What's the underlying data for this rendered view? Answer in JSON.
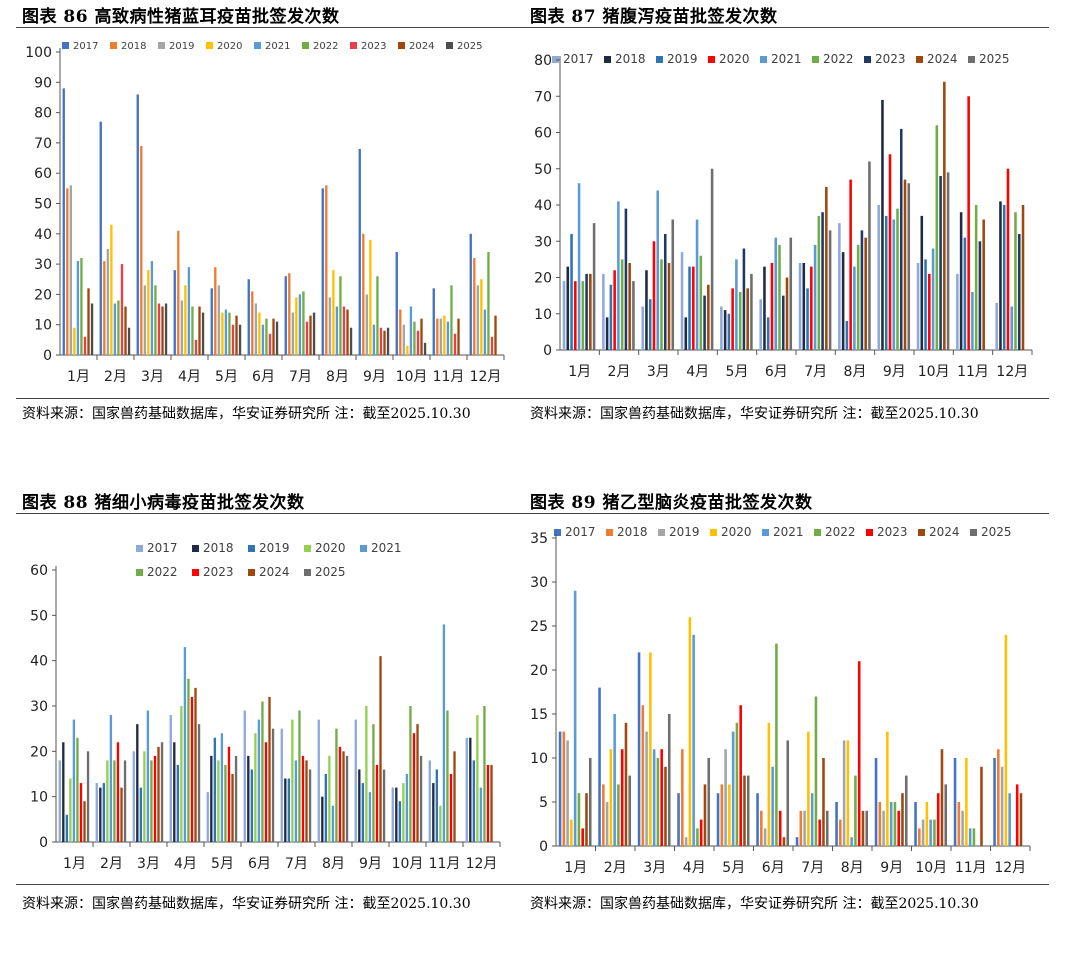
{
  "months": [
    "1月",
    "2月",
    "3月",
    "4月",
    "5月",
    "6月",
    "7月",
    "8月",
    "9月",
    "10月",
    "11月",
    "12月"
  ],
  "chart_data": [
    {
      "id": "c86",
      "type": "bar",
      "title": "图表 86 高致病性猪蓝耳疫苗批签发次数",
      "source": "资料来源：国家兽药基础数据库，华安证券研究所 注：截至2025.10.30",
      "ylim": [
        0,
        100
      ],
      "yticks": [
        0,
        10,
        20,
        30,
        40,
        50,
        60,
        70,
        80,
        90,
        100
      ],
      "legend_rows": [
        [
          "2017",
          "2018",
          "2019",
          "2020",
          "2021",
          "2022",
          "2023",
          "2024",
          "2025"
        ]
      ],
      "series": [
        {
          "name": "2017",
          "color": "#4472C4",
          "values": [
            88,
            77,
            86,
            28,
            22,
            25,
            26,
            55,
            68,
            34,
            22,
            40
          ]
        },
        {
          "name": "2018",
          "color": "#ED7D31",
          "values": [
            55,
            31,
            69,
            41,
            29,
            21,
            27,
            56,
            40,
            15,
            12,
            32
          ]
        },
        {
          "name": "2019",
          "color": "#A5A5A5",
          "values": [
            56,
            35,
            23,
            18,
            23,
            17,
            14,
            19,
            20,
            10,
            12,
            23
          ]
        },
        {
          "name": "2020",
          "color": "#FFC000",
          "values": [
            9,
            43,
            28,
            23,
            14,
            14,
            19,
            28,
            38,
            3,
            13,
            25
          ]
        },
        {
          "name": "2021",
          "color": "#5B9BD5",
          "values": [
            31,
            17,
            31,
            29,
            15,
            10,
            20,
            16,
            10,
            16,
            11,
            15
          ]
        },
        {
          "name": "2022",
          "color": "#70AD47",
          "values": [
            32,
            18,
            23,
            16,
            14,
            12,
            21,
            26,
            26,
            11,
            23,
            34
          ]
        },
        {
          "name": "2023",
          "color": "#E8404A",
          "values": [
            6,
            30,
            17,
            5,
            10,
            7,
            11,
            16,
            9,
            8,
            7,
            6
          ]
        },
        {
          "name": "2024",
          "color": "#9E480E",
          "values": [
            22,
            16,
            16,
            16,
            13,
            12,
            13,
            15,
            8,
            12,
            12,
            13
          ]
        },
        {
          "name": "2025",
          "color": "#4D4D4D",
          "values": [
            17,
            9,
            17,
            14,
            10,
            11,
            14,
            9,
            9,
            4,
            0,
            0
          ]
        }
      ]
    },
    {
      "id": "c87",
      "type": "bar",
      "title": "图表 87 猪腹泻疫苗批签发次数",
      "source": "资料来源：国家兽药基础数据库，华安证券研究所 注：截至2025.10.30",
      "ylim": [
        0,
        80
      ],
      "yticks": [
        0,
        10,
        20,
        30,
        40,
        50,
        60,
        70,
        80
      ],
      "legend_rows": [
        [
          "2017",
          "2018",
          "2019",
          "2020",
          "2021",
          "2022",
          "2023",
          "2024",
          "2025"
        ]
      ],
      "series": [
        {
          "name": "2017",
          "color": "#8EA9DB",
          "values": [
            19,
            21,
            12,
            27,
            12,
            14,
            24,
            35,
            40,
            24,
            21,
            13
          ]
        },
        {
          "name": "2018",
          "color": "#1F2A44",
          "values": [
            23,
            9,
            22,
            9,
            11,
            23,
            24,
            27,
            69,
            37,
            38,
            41
          ]
        },
        {
          "name": "2019",
          "color": "#2E75B6",
          "values": [
            32,
            18,
            14,
            23,
            10,
            9,
            17,
            8,
            37,
            25,
            31,
            40
          ]
        },
        {
          "name": "2020",
          "color": "#FF0000",
          "values": [
            19,
            22,
            30,
            23,
            17,
            24,
            23,
            47,
            54,
            21,
            70,
            50
          ]
        },
        {
          "name": "2021",
          "color": "#5B9BD5",
          "values": [
            46,
            41,
            44,
            36,
            25,
            31,
            29,
            23,
            36,
            28,
            16,
            12
          ]
        },
        {
          "name": "2022",
          "color": "#70AD47",
          "values": [
            19,
            25,
            25,
            26,
            16,
            29,
            37,
            29,
            39,
            62,
            40,
            38
          ]
        },
        {
          "name": "2023",
          "color": "#203864",
          "values": [
            21,
            39,
            32,
            15,
            28,
            15,
            38,
            33,
            61,
            48,
            30,
            32
          ]
        },
        {
          "name": "2024",
          "color": "#9E480E",
          "values": [
            21,
            24,
            24,
            18,
            17,
            20,
            45,
            31,
            47,
            74,
            36,
            40
          ]
        },
        {
          "name": "2025",
          "color": "#6E6E6E",
          "values": [
            35,
            19,
            36,
            50,
            21,
            31,
            33,
            52,
            46,
            49,
            0,
            0
          ]
        }
      ]
    },
    {
      "id": "c88",
      "type": "bar",
      "title": "图表 88 猪细小病毒疫苗批签发次数",
      "source": "资料来源：国家兽药基础数据库，华安证券研究所 注：截至2025.10.30",
      "ylim": [
        0,
        60
      ],
      "yticks": [
        0,
        10,
        20,
        30,
        40,
        50,
        60
      ],
      "legend_rows": [
        [
          "2017",
          "2018",
          "2019",
          "2020",
          "2021"
        ],
        [
          "2022",
          "2023",
          "2024",
          "2025"
        ]
      ],
      "series": [
        {
          "name": "2017",
          "color": "#8EA9DB",
          "values": [
            18,
            13,
            20,
            28,
            11,
            29,
            25,
            27,
            27,
            12,
            18,
            23
          ]
        },
        {
          "name": "2018",
          "color": "#1F2A44",
          "values": [
            22,
            12,
            26,
            22,
            19,
            19,
            14,
            10,
            16,
            12,
            13,
            23
          ]
        },
        {
          "name": "2019",
          "color": "#2E75B6",
          "values": [
            6,
            13,
            12,
            17,
            23,
            16,
            14,
            15,
            13,
            9,
            16,
            18
          ]
        },
        {
          "name": "2020",
          "color": "#92D050",
          "values": [
            14,
            18,
            20,
            30,
            18,
            24,
            27,
            19,
            30,
            13,
            8,
            28
          ]
        },
        {
          "name": "2021",
          "color": "#5B9BD5",
          "values": [
            27,
            28,
            29,
            43,
            24,
            27,
            18,
            8,
            11,
            15,
            48,
            12
          ]
        },
        {
          "name": "2022",
          "color": "#70AD47",
          "values": [
            23,
            18,
            18,
            36,
            17,
            31,
            29,
            25,
            26,
            30,
            29,
            30
          ]
        },
        {
          "name": "2023",
          "color": "#FF0000",
          "values": [
            13,
            22,
            19,
            32,
            21,
            22,
            19,
            21,
            17,
            24,
            15,
            17
          ]
        },
        {
          "name": "2024",
          "color": "#9E480E",
          "values": [
            9,
            12,
            21,
            34,
            15,
            32,
            18,
            20,
            41,
            26,
            20,
            17
          ]
        },
        {
          "name": "2025",
          "color": "#6E6E6E",
          "values": [
            20,
            18,
            22,
            26,
            19,
            25,
            16,
            19,
            16,
            19,
            0,
            0
          ]
        }
      ]
    },
    {
      "id": "c89",
      "type": "bar",
      "title": "图表 89 猪乙型脑炎疫苗批签发次数",
      "source": "资料来源：国家兽药基础数据库，华安证券研究所 注：截至2025.10.30",
      "ylim": [
        0,
        35
      ],
      "yticks": [
        0,
        5,
        10,
        15,
        20,
        25,
        30,
        35
      ],
      "legend_rows": [
        [
          "2017",
          "2018",
          "2019",
          "2020",
          "2021",
          "2022",
          "2023",
          "2024",
          "2025"
        ]
      ],
      "series": [
        {
          "name": "2017",
          "color": "#4472C4",
          "values": [
            13,
            18,
            22,
            6,
            6,
            6,
            1,
            5,
            10,
            5,
            10,
            10
          ]
        },
        {
          "name": "2018",
          "color": "#ED7D31",
          "values": [
            13,
            7,
            16,
            11,
            7,
            4,
            4,
            3,
            5,
            2,
            5,
            11
          ]
        },
        {
          "name": "2019",
          "color": "#A5A5A5",
          "values": [
            12,
            5,
            13,
            1,
            11,
            2,
            4,
            12,
            4,
            3,
            4,
            9
          ]
        },
        {
          "name": "2020",
          "color": "#FFC000",
          "values": [
            3,
            11,
            22,
            26,
            7,
            14,
            13,
            12,
            13,
            5,
            10,
            24
          ]
        },
        {
          "name": "2021",
          "color": "#5B9BD5",
          "values": [
            29,
            15,
            11,
            24,
            13,
            9,
            6,
            1,
            5,
            3,
            2,
            6
          ]
        },
        {
          "name": "2022",
          "color": "#70AD47",
          "values": [
            6,
            7,
            10,
            2,
            14,
            23,
            17,
            8,
            5,
            3,
            2,
            0
          ]
        },
        {
          "name": "2023",
          "color": "#FF0000",
          "values": [
            2,
            11,
            11,
            3,
            16,
            4,
            3,
            21,
            4,
            6,
            0,
            7
          ]
        },
        {
          "name": "2024",
          "color": "#9E480E",
          "values": [
            6,
            14,
            9,
            7,
            8,
            1,
            10,
            4,
            6,
            11,
            9,
            6
          ]
        },
        {
          "name": "2025",
          "color": "#6E6E6E",
          "values": [
            10,
            8,
            15,
            10,
            8,
            12,
            4,
            4,
            8,
            7,
            0,
            0
          ]
        }
      ]
    }
  ]
}
